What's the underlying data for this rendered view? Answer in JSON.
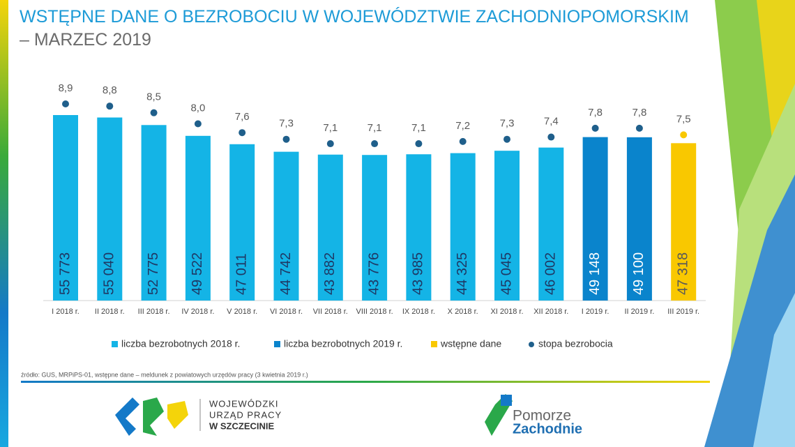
{
  "chart_data": {
    "type": "bar",
    "title": "WSTĘPNE DANE O BEZROBOCIU W WOJEWÓDZTWIE ZACHODNIOPOMORSKIM",
    "subtitle": "– MARZEC 2019",
    "categories": [
      "I 2018 r.",
      "II 2018 r.",
      "III 2018 r.",
      "IV 2018 r.",
      "V 2018 r.",
      "VI 2018 r.",
      "VII 2018 r.",
      "VIII 2018 r.",
      "IX 2018 r.",
      "X 2018 r.",
      "XI 2018 r.",
      "XII 2018 r.",
      "I 2019 r.",
      "II 2019 r.",
      "III 2019 r."
    ],
    "series": [
      {
        "name": "liczba bezrobotnych 2018 r.",
        "type": "bar",
        "color": "#14b4e6",
        "label_color": "#1f3864",
        "values": [
          55773,
          55040,
          52775,
          49522,
          47011,
          44742,
          43882,
          43776,
          43985,
          44325,
          45045,
          46002,
          null,
          null,
          null
        ],
        "value_labels": [
          "55 773",
          "55 040",
          "52 775",
          "49 522",
          "47 011",
          "44 742",
          "43 882",
          "43 776",
          "43 985",
          "44 325",
          "45 045",
          "46 002",
          null,
          null,
          null
        ]
      },
      {
        "name": "liczba bezrobotnych 2019 r.",
        "type": "bar",
        "color": "#0a84cc",
        "label_color": "#ffffff",
        "values": [
          null,
          null,
          null,
          null,
          null,
          null,
          null,
          null,
          null,
          null,
          null,
          null,
          49148,
          49100,
          null
        ],
        "value_labels": [
          null,
          null,
          null,
          null,
          null,
          null,
          null,
          null,
          null,
          null,
          null,
          null,
          "49 148",
          "49 100",
          null
        ]
      },
      {
        "name": "wstępne dane",
        "type": "bar",
        "color": "#f9c800",
        "label_color": "#595959",
        "values": [
          null,
          null,
          null,
          null,
          null,
          null,
          null,
          null,
          null,
          null,
          null,
          null,
          null,
          null,
          47318
        ],
        "value_labels": [
          null,
          null,
          null,
          null,
          null,
          null,
          null,
          null,
          null,
          null,
          null,
          null,
          null,
          null,
          "47 318"
        ]
      },
      {
        "name": "stopa bezrobocia",
        "type": "dot",
        "color": "#1f5f8b",
        "colors": [
          "#1f5f8b",
          "#1f5f8b",
          "#1f5f8b",
          "#1f5f8b",
          "#1f5f8b",
          "#1f5f8b",
          "#1f5f8b",
          "#1f5f8b",
          "#1f5f8b",
          "#1f5f8b",
          "#1f5f8b",
          "#1f5f8b",
          "#1f5f8b",
          "#1f5f8b",
          "#f9c800"
        ],
        "values": [
          8.9,
          8.8,
          8.5,
          8.0,
          7.6,
          7.3,
          7.1,
          7.1,
          7.1,
          7.2,
          7.3,
          7.4,
          7.8,
          7.8,
          7.5
        ],
        "value_labels": [
          "8,9",
          "8,8",
          "8,5",
          "8,0",
          "7,6",
          "7,3",
          "7,1",
          "7,1",
          "7,1",
          "7,2",
          "7,3",
          "7,4",
          "7,8",
          "7,8",
          "7,5"
        ]
      }
    ]
  },
  "source": "źródło: GUS, MRPiPS-01, wstępne dane – meldunek z powiatowych urzędów pracy (3 kwietnia 2019 r.)",
  "logos": {
    "wup": [
      "WOJEWÓDZKI",
      "URZĄD PRACY",
      "W  SZCZECINIE"
    ],
    "pomorze": [
      "Pomorze",
      "Zachodnie"
    ]
  }
}
